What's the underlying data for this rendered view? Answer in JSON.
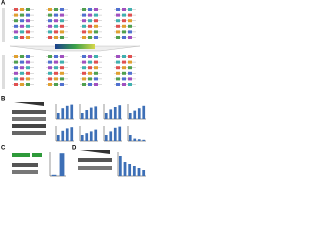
{
  "panel_labels": [
    "A",
    "B",
    "C",
    "D"
  ],
  "panel_b_charts": [
    {
      "values": [
        1,
        1.8,
        2.2,
        2.4
      ]
    },
    {
      "values": [
        1,
        1.5,
        1.9,
        2.1
      ]
    },
    {
      "values": [
        1,
        1.6,
        2.0,
        2.3
      ]
    },
    {
      "values": [
        1,
        1.4,
        1.8,
        2.2
      ]
    },
    {
      "values": [
        1,
        1.7,
        2.1,
        2.3
      ]
    },
    {
      "values": [
        1,
        1.3,
        1.6,
        1.9
      ]
    },
    {
      "values": [
        1,
        1.6,
        2.2,
        2.4
      ]
    },
    {
      "values": [
        1,
        0.4,
        0.3,
        0.2
      ]
    }
  ],
  "panel_b_ylim": [
    0,
    2.5
  ],
  "panel_c_chart": {
    "values": [
      0.1,
      1.9
    ]
  },
  "panel_c_ylim": [
    0,
    2
  ],
  "panel_d_chart": {
    "values": [
      1,
      0.7,
      0.6,
      0.5,
      0.4,
      0.3
    ]
  },
  "panel_d_ylim": [
    0,
    1.2
  ],
  "bar_color": "#3d6fb6"
}
